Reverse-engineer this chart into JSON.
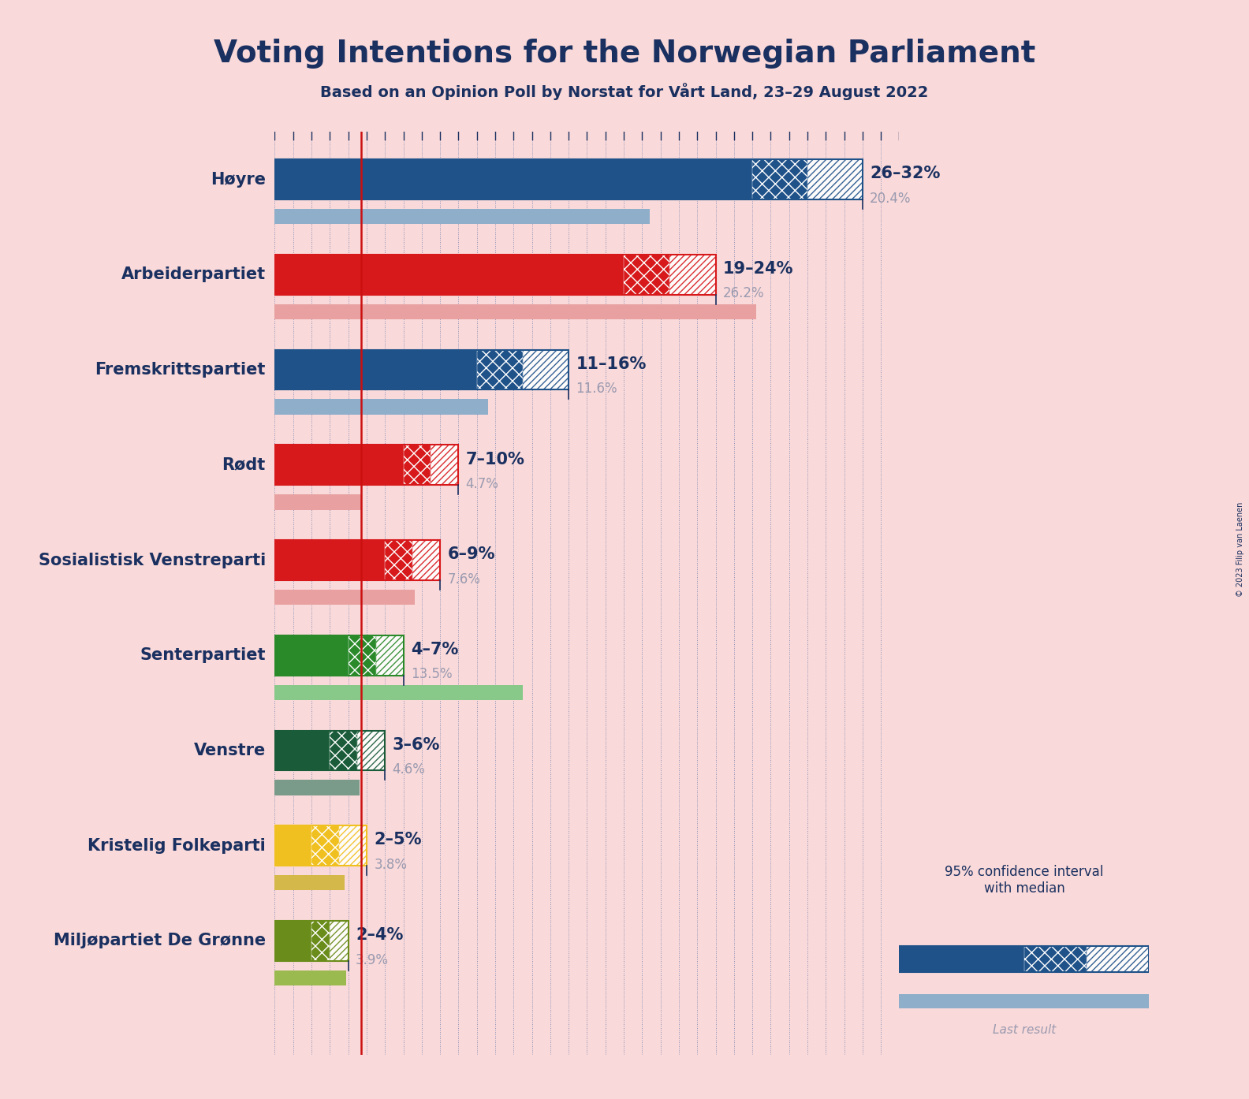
{
  "title": "Voting Intentions for the Norwegian Parliament",
  "subtitle": "Based on an Opinion Poll by Norstat for Vårt Land, 23–29 August 2022",
  "copyright": "© 2023 Filip van Laenen",
  "background_color": "#f9d9d9",
  "parties": [
    {
      "name": "Høyre",
      "ci_low": 26,
      "ci_high": 32,
      "median": 29,
      "last": 20.4,
      "color": "#1f5289",
      "last_color": "#8eaec9"
    },
    {
      "name": "Arbeiderpartiet",
      "ci_low": 19,
      "ci_high": 24,
      "median": 21.5,
      "last": 26.2,
      "color": "#d7191c",
      "last_color": "#e8a0a0"
    },
    {
      "name": "Fremskrittspartiet",
      "ci_low": 11,
      "ci_high": 16,
      "median": 13.5,
      "last": 11.6,
      "color": "#1f5289",
      "last_color": "#8eaec9"
    },
    {
      "name": "Rødt",
      "ci_low": 7,
      "ci_high": 10,
      "median": 8.5,
      "last": 4.7,
      "color": "#d7191c",
      "last_color": "#e8a0a0"
    },
    {
      "name": "Sosialistisk Venstreparti",
      "ci_low": 6,
      "ci_high": 9,
      "median": 7.5,
      "last": 7.6,
      "color": "#d7191c",
      "last_color": "#e8a0a0"
    },
    {
      "name": "Senterpartiet",
      "ci_low": 4,
      "ci_high": 7,
      "median": 5.5,
      "last": 13.5,
      "color": "#2a8a2a",
      "last_color": "#88c888"
    },
    {
      "name": "Venstre",
      "ci_low": 3,
      "ci_high": 6,
      "median": 4.5,
      "last": 4.6,
      "color": "#1a5c3a",
      "last_color": "#7a9a8a"
    },
    {
      "name": "Kristelig Folkeparti",
      "ci_low": 2,
      "ci_high": 5,
      "median": 3.5,
      "last": 3.8,
      "color": "#f0c020",
      "last_color": "#d4b84a"
    },
    {
      "name": "Miljøpartiet De Grønne",
      "ci_low": 2,
      "ci_high": 4,
      "median": 3.0,
      "last": 3.9,
      "color": "#6a8c1a",
      "last_color": "#9aba50"
    }
  ],
  "label_color": "#1a3060",
  "last_label_color": "#9a9ab0",
  "range_label_color": "#1a3060",
  "x_max": 34,
  "median_line_color": "#cc1010",
  "tick_line_color": "#1a3060",
  "dotted_color": "#4060a0"
}
